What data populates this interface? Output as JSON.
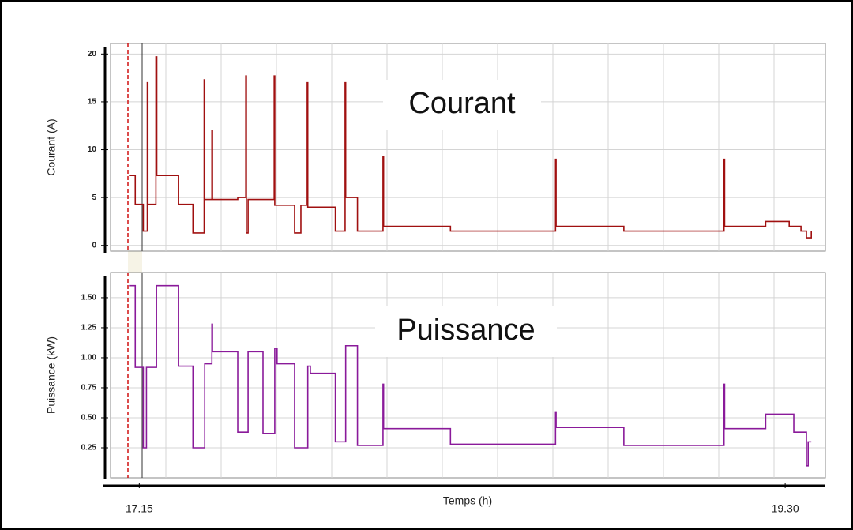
{
  "chart_data": [
    {
      "type": "line",
      "ylabel": "Courant (A)",
      "annotation": "Courant",
      "step": "post",
      "color": "#a01010",
      "xlim": [
        17.15,
        19.64
      ],
      "ylim": [
        -0.6,
        21.1
      ],
      "yticks": [
        0,
        5,
        10,
        15,
        20
      ],
      "grid": true,
      "x": [
        17.214,
        17.236,
        17.264,
        17.278,
        17.28,
        17.308,
        17.311,
        17.387,
        17.437,
        17.476,
        17.478,
        17.503,
        17.505,
        17.593,
        17.621,
        17.623,
        17.629,
        17.72,
        17.722,
        17.791,
        17.813,
        17.835,
        17.837,
        17.933,
        17.967,
        17.969,
        18.01,
        18.099,
        18.101,
        18.334,
        18.7,
        18.702,
        18.938,
        19.287,
        19.289,
        19.432,
        19.514,
        19.555,
        19.574,
        19.591
      ],
      "series": [
        {
          "name": "Courant",
          "color": "#a01010",
          "values": [
            7.3,
            4.3,
            1.5,
            17,
            4.3,
            19.7,
            7.3,
            4.3,
            1.3,
            17.3,
            4.8,
            12,
            4.8,
            5,
            17.7,
            1.3,
            4.8,
            17.7,
            4.2,
            1.3,
            4.2,
            17,
            4,
            1.5,
            17,
            5,
            1.5,
            9.3,
            2,
            1.5,
            9,
            2,
            1.5,
            9,
            2,
            2.5,
            2,
            1.5,
            0.8,
            1.5
          ]
        }
      ]
    },
    {
      "type": "line",
      "ylabel": "Puissance (kW)",
      "annotation": "Puissance",
      "xlabel": "Temps (h)",
      "step": "post",
      "color": "#8a1a9a",
      "xlim": [
        17.15,
        19.64
      ],
      "ylim": [
        0,
        1.71
      ],
      "xticks": [
        {
          "value": 17.25,
          "label": "17.15"
        },
        {
          "value": 19.5,
          "label": "19.30"
        }
      ],
      "yticks": [
        {
          "value": 0.25,
          "label": "0.25"
        },
        {
          "value": 0.5,
          "label": "0.50"
        },
        {
          "value": 0.75,
          "label": "0.75"
        },
        {
          "value": 1.0,
          "label": "1.00"
        },
        {
          "value": 1.25,
          "label": "1.25"
        },
        {
          "value": 1.5,
          "label": "1.50"
        }
      ],
      "grid": true,
      "x": [
        17.214,
        17.236,
        17.264,
        17.275,
        17.31,
        17.387,
        17.437,
        17.478,
        17.503,
        17.505,
        17.593,
        17.629,
        17.681,
        17.722,
        17.73,
        17.791,
        17.837,
        17.846,
        17.933,
        17.969,
        18.01,
        18.099,
        18.101,
        18.334,
        18.7,
        18.702,
        18.938,
        19.287,
        19.289,
        19.432,
        19.53,
        19.574,
        19.58,
        19.591
      ],
      "series": [
        {
          "name": "Puissance",
          "color": "#8a1a9a",
          "values": [
            1.6,
            0.92,
            0.25,
            0.92,
            1.6,
            0.93,
            0.25,
            0.95,
            1.28,
            1.05,
            0.38,
            1.05,
            0.37,
            1.08,
            0.95,
            0.25,
            0.93,
            0.87,
            0.3,
            1.1,
            0.27,
            0.78,
            0.41,
            0.28,
            0.55,
            0.42,
            0.27,
            0.78,
            0.41,
            0.53,
            0.38,
            0.1,
            0.3,
            0.3
          ]
        }
      ]
    }
  ]
}
